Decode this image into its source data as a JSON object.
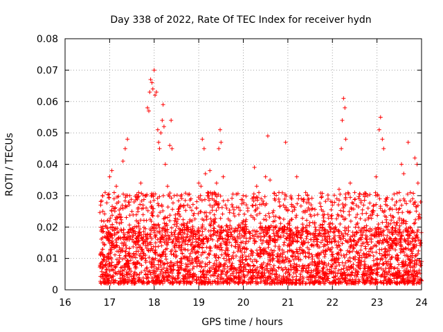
{
  "chart_data": {
    "type": "scatter",
    "title": "Day 338 of 2022, Rate Of TEC Index for receiver hydn",
    "xlabel": "GPS time / hours",
    "ylabel": "ROTI / TECUs",
    "xlim": [
      16,
      24
    ],
    "ylim": [
      0,
      0.08
    ],
    "x_ticks": [
      16,
      17,
      18,
      19,
      20,
      21,
      22,
      23,
      24
    ],
    "x_tick_labels": [
      "16",
      "17",
      "18",
      "19",
      "20",
      "21",
      "22",
      "23",
      "24"
    ],
    "y_ticks": [
      0,
      0.01,
      0.02,
      0.03,
      0.04,
      0.05,
      0.06,
      0.07,
      0.08
    ],
    "y_tick_labels": [
      "0",
      "0.01",
      "0.02",
      "0.03",
      "0.04",
      "0.05",
      "0.06",
      "0.07",
      "0.08"
    ],
    "grid": true,
    "marker": "+",
    "color": "#ff0000",
    "series": [
      {
        "name": "ROTI",
        "points": [
          [
            16.8,
            0.027
          ],
          [
            16.85,
            0.015
          ],
          [
            16.9,
            0.031
          ],
          [
            16.95,
            0.022
          ],
          [
            17.0,
            0.036
          ],
          [
            17.05,
            0.038
          ],
          [
            17.1,
            0.029
          ],
          [
            17.15,
            0.033
          ],
          [
            17.2,
            0.028
          ],
          [
            17.25,
            0.026
          ],
          [
            17.3,
            0.041
          ],
          [
            17.35,
            0.045
          ],
          [
            17.4,
            0.048
          ],
          [
            17.45,
            0.03
          ],
          [
            17.5,
            0.025
          ],
          [
            17.55,
            0.028
          ],
          [
            17.6,
            0.022
          ],
          [
            17.65,
            0.031
          ],
          [
            17.7,
            0.034
          ],
          [
            17.75,
            0.027
          ],
          [
            17.8,
            0.03
          ],
          [
            17.85,
            0.058
          ],
          [
            17.88,
            0.057
          ],
          [
            17.9,
            0.063
          ],
          [
            17.92,
            0.067
          ],
          [
            17.95,
            0.066
          ],
          [
            17.97,
            0.064
          ],
          [
            18.0,
            0.07
          ],
          [
            18.02,
            0.062
          ],
          [
            18.05,
            0.063
          ],
          [
            18.08,
            0.051
          ],
          [
            18.1,
            0.047
          ],
          [
            18.12,
            0.045
          ],
          [
            18.15,
            0.05
          ],
          [
            18.18,
            0.054
          ],
          [
            18.2,
            0.059
          ],
          [
            18.22,
            0.052
          ],
          [
            18.25,
            0.04
          ],
          [
            18.3,
            0.033
          ],
          [
            18.35,
            0.046
          ],
          [
            18.38,
            0.054
          ],
          [
            18.4,
            0.045
          ],
          [
            18.45,
            0.03
          ],
          [
            18.55,
            0.025
          ],
          [
            18.65,
            0.021
          ],
          [
            18.75,
            0.027
          ],
          [
            18.85,
            0.022
          ],
          [
            18.95,
            0.026
          ],
          [
            19.0,
            0.034
          ],
          [
            19.05,
            0.033
          ],
          [
            19.08,
            0.048
          ],
          [
            19.12,
            0.045
          ],
          [
            19.15,
            0.037
          ],
          [
            19.2,
            0.031
          ],
          [
            19.25,
            0.038
          ],
          [
            19.3,
            0.029
          ],
          [
            19.35,
            0.031
          ],
          [
            19.4,
            0.034
          ],
          [
            19.45,
            0.045
          ],
          [
            19.48,
            0.051
          ],
          [
            19.5,
            0.047
          ],
          [
            19.55,
            0.036
          ],
          [
            19.6,
            0.027
          ],
          [
            19.7,
            0.022
          ],
          [
            19.8,
            0.019
          ],
          [
            19.9,
            0.024
          ],
          [
            20.0,
            0.022
          ],
          [
            20.1,
            0.026
          ],
          [
            20.2,
            0.029
          ],
          [
            20.25,
            0.039
          ],
          [
            20.3,
            0.033
          ],
          [
            20.35,
            0.031
          ],
          [
            20.4,
            0.029
          ],
          [
            20.5,
            0.036
          ],
          [
            20.55,
            0.049
          ],
          [
            20.6,
            0.035
          ],
          [
            20.7,
            0.029
          ],
          [
            20.8,
            0.031
          ],
          [
            20.9,
            0.027
          ],
          [
            20.95,
            0.047
          ],
          [
            21.0,
            0.021
          ],
          [
            21.1,
            0.025
          ],
          [
            21.2,
            0.036
          ],
          [
            21.3,
            0.029
          ],
          [
            21.4,
            0.031
          ],
          [
            21.5,
            0.024
          ],
          [
            21.6,
            0.021
          ],
          [
            21.7,
            0.019
          ],
          [
            21.8,
            0.022
          ],
          [
            21.9,
            0.024
          ],
          [
            22.0,
            0.027
          ],
          [
            22.1,
            0.029
          ],
          [
            22.15,
            0.032
          ],
          [
            22.2,
            0.045
          ],
          [
            22.22,
            0.054
          ],
          [
            22.25,
            0.061
          ],
          [
            22.28,
            0.058
          ],
          [
            22.3,
            0.048
          ],
          [
            22.35,
            0.031
          ],
          [
            22.4,
            0.034
          ],
          [
            22.5,
            0.031
          ],
          [
            22.6,
            0.029
          ],
          [
            22.7,
            0.027
          ],
          [
            22.8,
            0.026
          ],
          [
            22.9,
            0.024
          ],
          [
            22.98,
            0.036
          ],
          [
            23.05,
            0.051
          ],
          [
            23.08,
            0.055
          ],
          [
            23.12,
            0.048
          ],
          [
            23.15,
            0.045
          ],
          [
            23.2,
            0.029
          ],
          [
            23.3,
            0.026
          ],
          [
            23.4,
            0.027
          ],
          [
            23.5,
            0.031
          ],
          [
            23.55,
            0.04
          ],
          [
            23.6,
            0.037
          ],
          [
            23.7,
            0.047
          ],
          [
            23.75,
            0.031
          ],
          [
            23.8,
            0.029
          ],
          [
            23.85,
            0.042
          ],
          [
            23.9,
            0.04
          ],
          [
            23.92,
            0.034
          ],
          [
            23.95,
            0.024
          ],
          [
            23.98,
            0.028
          ],
          [
            16.85,
            0.008
          ],
          [
            17.0,
            0.006
          ],
          [
            17.2,
            0.009
          ],
          [
            17.4,
            0.005
          ],
          [
            17.6,
            0.007
          ],
          [
            17.8,
            0.01
          ],
          [
            18.0,
            0.008
          ],
          [
            18.2,
            0.012
          ],
          [
            18.4,
            0.006
          ],
          [
            18.6,
            0.007
          ],
          [
            18.8,
            0.005
          ],
          [
            19.0,
            0.009
          ],
          [
            19.2,
            0.006
          ],
          [
            19.4,
            0.008
          ],
          [
            19.6,
            0.005
          ],
          [
            19.8,
            0.007
          ],
          [
            20.0,
            0.006
          ],
          [
            20.2,
            0.009
          ],
          [
            20.4,
            0.008
          ],
          [
            20.6,
            0.006
          ],
          [
            20.8,
            0.007
          ],
          [
            21.0,
            0.01
          ],
          [
            21.2,
            0.008
          ],
          [
            21.4,
            0.006
          ],
          [
            21.6,
            0.009
          ],
          [
            21.8,
            0.007
          ],
          [
            22.0,
            0.008
          ],
          [
            22.2,
            0.011
          ],
          [
            22.4,
            0.009
          ],
          [
            22.6,
            0.007
          ],
          [
            22.8,
            0.006
          ],
          [
            23.0,
            0.008
          ],
          [
            23.2,
            0.009
          ],
          [
            23.4,
            0.007
          ],
          [
            23.6,
            0.008
          ],
          [
            23.8,
            0.006
          ],
          [
            24.0,
            0.009
          ]
        ]
      }
    ],
    "dense_band": {
      "x_range": [
        16.78,
        24.0
      ],
      "y_range": [
        0.002,
        0.02
      ],
      "note": "dense cloud of samples between roughly 0.002 and 0.02 TECUs across the whole interval"
    }
  }
}
